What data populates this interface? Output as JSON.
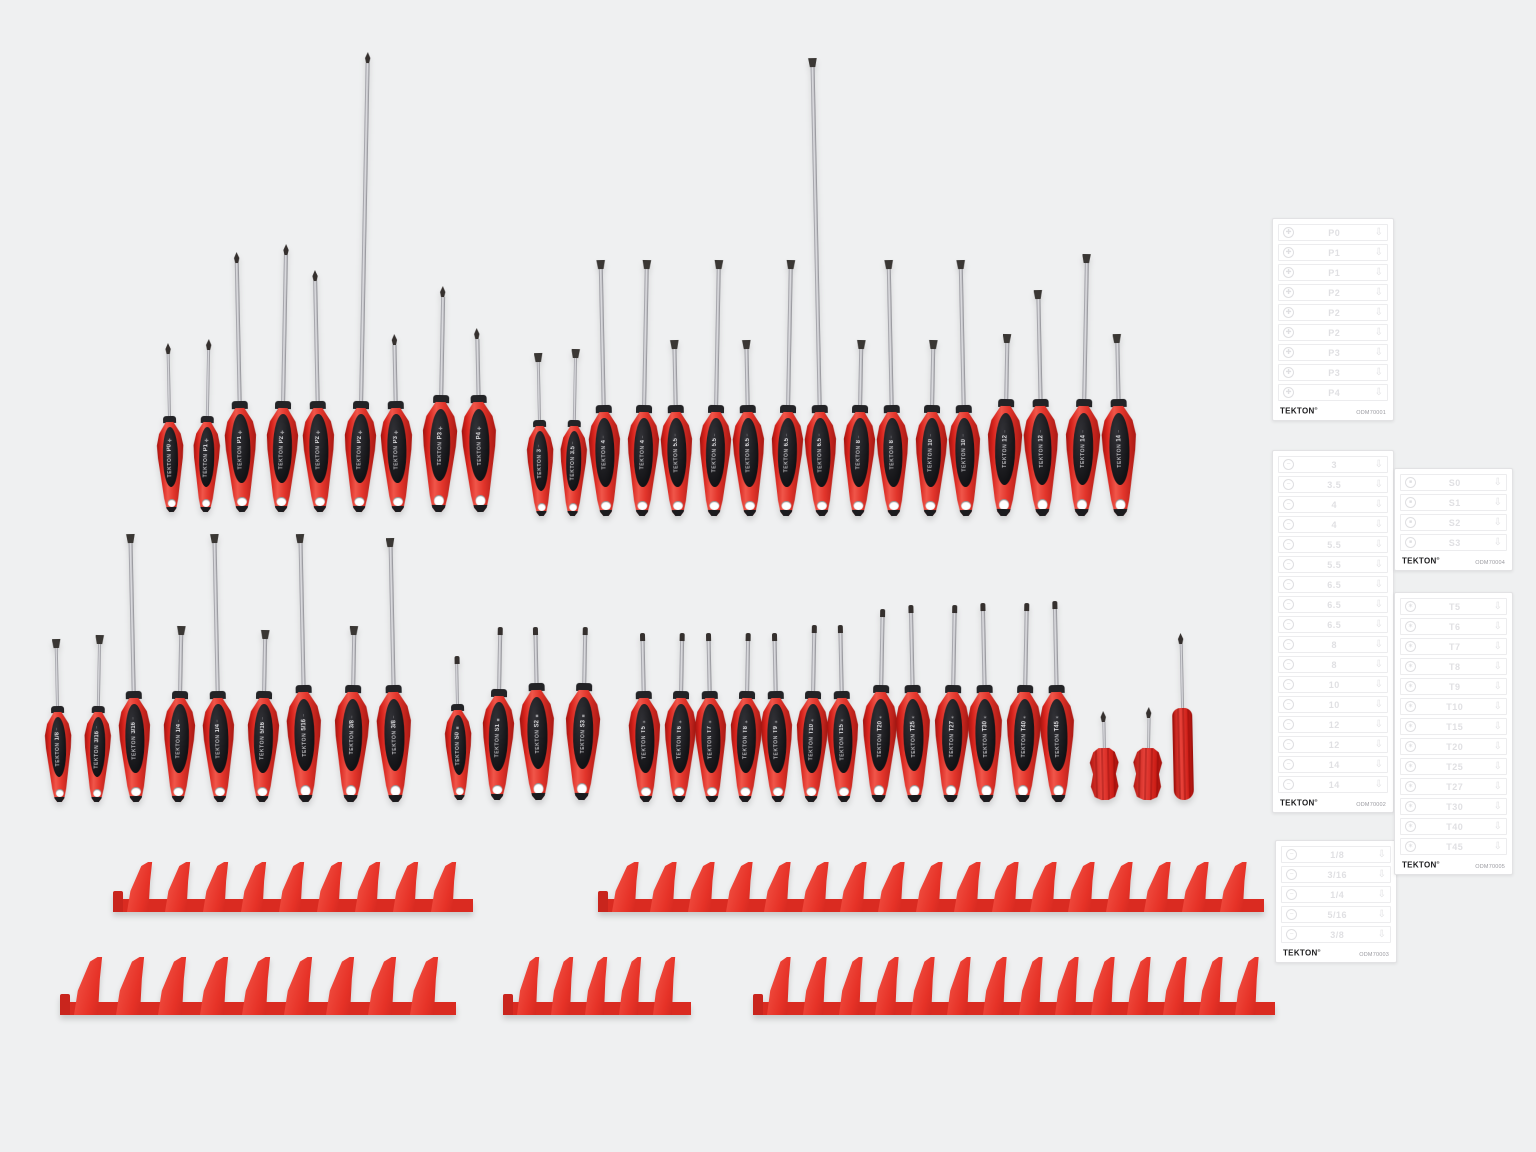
{
  "brand": "TEKTON",
  "reg_mark": "®",
  "colors": {
    "background": "#eff0f1",
    "handle_red": "#d7231c",
    "handle_insert_black": "#1a1a1d",
    "rack_red": "#e63227",
    "shaft_silver": "#b9bac0",
    "card_background": "#ffffff",
    "card_faint_text": "#e0e0e3"
  },
  "driver_rows": [
    {
      "name": "phillips-metric",
      "icon": "phillips",
      "drivers": [
        {
          "label": "P0",
          "tip": "phillips",
          "shaft": 62,
          "size": "s"
        },
        {
          "label": "P1",
          "tip": "phillips",
          "shaft": 66,
          "size": "s"
        },
        {
          "label": "P1",
          "tip": "phillips",
          "shaft": 138,
          "size": "m"
        },
        {
          "label": "P2",
          "tip": "phillips",
          "shaft": 146,
          "size": "m"
        },
        {
          "label": "P2",
          "tip": "phillips",
          "shaft": 120,
          "size": "m"
        },
        {
          "label": "P2",
          "tip": "phillips",
          "shaft": 338,
          "size": "m"
        },
        {
          "label": "P3",
          "tip": "phillips",
          "shaft": 56,
          "size": "m"
        },
        {
          "label": "P3",
          "tip": "phillips",
          "shaft": 98,
          "size": "l"
        },
        {
          "label": "P4",
          "tip": "phillips",
          "shaft": 56,
          "size": "l"
        }
      ]
    },
    {
      "name": "slotted-metric",
      "icon": "slotted",
      "drivers": [
        {
          "label": "3",
          "tip": "slotted",
          "shaft": 58,
          "size": "s"
        },
        {
          "label": "3.5",
          "tip": "slotted",
          "shaft": 62,
          "size": "s"
        },
        {
          "label": "4",
          "tip": "slotted",
          "shaft": 136,
          "size": "m"
        },
        {
          "label": "4",
          "tip": "slotted",
          "shaft": 136,
          "size": "m"
        },
        {
          "label": "5.5",
          "tip": "slotted",
          "shaft": 56,
          "size": "m"
        },
        {
          "label": "5.5",
          "tip": "slotted",
          "shaft": 136,
          "size": "m"
        },
        {
          "label": "6.5",
          "tip": "slotted",
          "shaft": 56,
          "size": "m"
        },
        {
          "label": "6.5",
          "tip": "slotted",
          "shaft": 136,
          "size": "m"
        },
        {
          "label": "6.5",
          "tip": "slotted",
          "shaft": 338,
          "size": "m"
        },
        {
          "label": "8",
          "tip": "slotted",
          "shaft": 56,
          "size": "m"
        },
        {
          "label": "8",
          "tip": "slotted",
          "shaft": 136,
          "size": "m"
        },
        {
          "label": "10",
          "tip": "slotted",
          "shaft": 56,
          "size": "m"
        },
        {
          "label": "10",
          "tip": "slotted",
          "shaft": 136,
          "size": "m"
        },
        {
          "label": "12",
          "tip": "slotted",
          "shaft": 56,
          "size": "l"
        },
        {
          "label": "12",
          "tip": "slotted",
          "shaft": 100,
          "size": "l"
        },
        {
          "label": "14",
          "tip": "slotted",
          "shaft": 136,
          "size": "l"
        },
        {
          "label": "14",
          "tip": "slotted",
          "shaft": 56,
          "size": "l"
        }
      ]
    },
    {
      "name": "slotted-sae",
      "icon": "slotted",
      "drivers": [
        {
          "label": "1/8",
          "tip": "slotted",
          "shaft": 58,
          "size": "s"
        },
        {
          "label": "3/16",
          "tip": "slotted",
          "shaft": 62,
          "size": "s"
        },
        {
          "label": "3/16",
          "tip": "slotted",
          "shaft": 148,
          "size": "m"
        },
        {
          "label": "1/4",
          "tip": "slotted",
          "shaft": 56,
          "size": "m"
        },
        {
          "label": "1/4",
          "tip": "slotted",
          "shaft": 148,
          "size": "m"
        },
        {
          "label": "5/16",
          "tip": "slotted",
          "shaft": 52,
          "size": "m"
        },
        {
          "label": "5/16",
          "tip": "slotted",
          "shaft": 142,
          "size": "l"
        },
        {
          "label": "3/8",
          "tip": "slotted",
          "shaft": 50,
          "size": "l"
        },
        {
          "label": "3/8",
          "tip": "slotted",
          "shaft": 138,
          "size": "l"
        }
      ]
    },
    {
      "name": "square-drive",
      "icon": "square",
      "drivers": [
        {
          "label": "S0",
          "tip": "square",
          "shaft": 40,
          "size": "s"
        },
        {
          "label": "S1",
          "tip": "square",
          "shaft": 54,
          "size": "m"
        },
        {
          "label": "S2",
          "tip": "square",
          "shaft": 48,
          "size": "l"
        },
        {
          "label": "S3",
          "tip": "square",
          "shaft": 48,
          "size": "l"
        }
      ]
    },
    {
      "name": "torx",
      "icon": "torx",
      "drivers": [
        {
          "label": "T5",
          "tip": "torx",
          "shaft": 50,
          "size": "m"
        },
        {
          "label": "T6",
          "tip": "torx",
          "shaft": 50,
          "size": "m"
        },
        {
          "label": "T7",
          "tip": "torx",
          "shaft": 50,
          "size": "m"
        },
        {
          "label": "T8",
          "tip": "torx",
          "shaft": 50,
          "size": "m"
        },
        {
          "label": "T9",
          "tip": "torx",
          "shaft": 50,
          "size": "m"
        },
        {
          "label": "T10",
          "tip": "torx",
          "shaft": 58,
          "size": "m"
        },
        {
          "label": "T15",
          "tip": "torx",
          "shaft": 58,
          "size": "m"
        },
        {
          "label": "T20",
          "tip": "torx",
          "shaft": 68,
          "size": "l"
        },
        {
          "label": "T25",
          "tip": "torx",
          "shaft": 72,
          "size": "l"
        },
        {
          "label": "T27",
          "tip": "torx",
          "shaft": 72,
          "size": "l"
        },
        {
          "label": "T30",
          "tip": "torx",
          "shaft": 74,
          "size": "l"
        },
        {
          "label": "T40",
          "tip": "torx",
          "shaft": 74,
          "size": "l"
        },
        {
          "label": "T45",
          "tip": "torx",
          "shaft": 76,
          "size": "l"
        }
      ]
    },
    {
      "name": "stubby-and-pocket",
      "icon": "phillips",
      "drivers": [
        {
          "label": "",
          "tip": "phillips",
          "shaft": 26,
          "size": "stubby"
        },
        {
          "label": "",
          "tip": "phillips",
          "shaft": 30,
          "size": "stubby"
        },
        {
          "label": "",
          "tip": "phillips",
          "shaft": 64,
          "size": "pocket"
        }
      ]
    }
  ],
  "cards": [
    {
      "part_number": "ODM70001",
      "icon": "phillips",
      "sizes": [
        "P0",
        "P1",
        "P1",
        "P2",
        "P2",
        "P2",
        "P3",
        "P3",
        "P4"
      ]
    },
    {
      "part_number": "ODM70002",
      "icon": "slotted",
      "sizes": [
        "3",
        "3.5",
        "4",
        "4",
        "5.5",
        "5.5",
        "6.5",
        "6.5",
        "6.5",
        "8",
        "8",
        "10",
        "10",
        "12",
        "12",
        "14",
        "14"
      ]
    },
    {
      "part_number": "ODM70003",
      "icon": "slotted",
      "sizes": [
        "1/8",
        "3/16",
        "1/4",
        "5/16",
        "3/8"
      ]
    },
    {
      "part_number": "ODM70004",
      "icon": "square",
      "sizes": [
        "S0",
        "S1",
        "S2",
        "S3"
      ]
    },
    {
      "part_number": "ODM70005",
      "icon": "torx",
      "sizes": [
        "T5",
        "T6",
        "T7",
        "T8",
        "T9",
        "T10",
        "T15",
        "T20",
        "T25",
        "T27",
        "T30",
        "T40",
        "T45"
      ]
    }
  ],
  "racks": [
    {
      "name": "rack-top-left",
      "fins": 9
    },
    {
      "name": "rack-top-right",
      "fins": 17
    },
    {
      "name": "rack-bottom-left",
      "fins": 9
    },
    {
      "name": "rack-bottom-middle",
      "fins": 5
    },
    {
      "name": "rack-bottom-right",
      "fins": 14
    }
  ],
  "icon_glyphs": {
    "phillips": "✚",
    "slotted": "−",
    "square": "■",
    "torx": "✶",
    "arrow_down": "⇩"
  }
}
